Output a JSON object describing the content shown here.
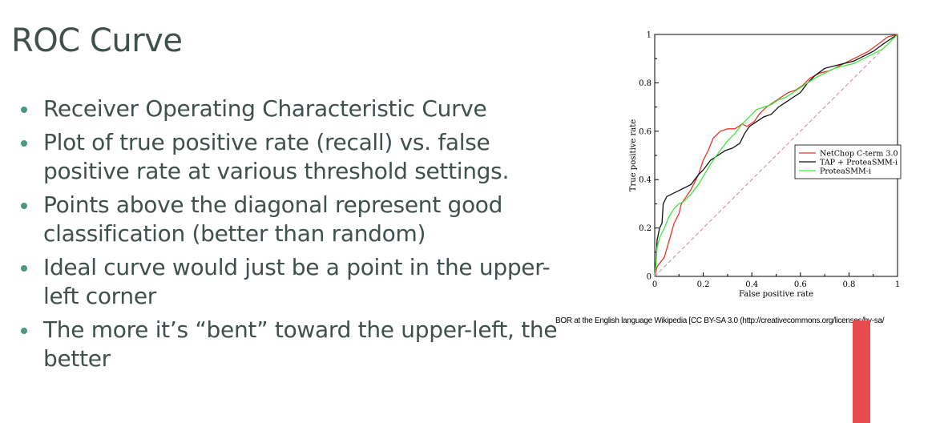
{
  "slide": {
    "title": "ROC Curve",
    "bullets": [
      "Receiver Operating Characteristic Curve",
      "Plot of true positive rate (recall) vs. false positive rate at various threshold settings.",
      "Points above the diagonal represent good classification (better than random)",
      "Ideal curve would just be a point in the upper-left corner",
      "The more it’s “bent” toward the upper-left, the better"
    ],
    "caption": "BOR at the English language Wikipedia [CC BY-SA 3.0 (http://creativecommons.org/licenses/by-sa/",
    "colors": {
      "text": "#3f5148",
      "bullet": "#4a9a7a",
      "accent_bar": "#e84b4b"
    }
  },
  "chart_data": {
    "type": "line",
    "title": "",
    "xlabel": "False positive rate",
    "ylabel": "True positive rate",
    "xlim": [
      0,
      1
    ],
    "ylim": [
      0,
      1
    ],
    "xticks": [
      "0",
      "0.2",
      "0.4",
      "0.6",
      "0.8",
      "1"
    ],
    "yticks": [
      "0",
      "0.2",
      "0.4",
      "0.6",
      "0.8",
      "1"
    ],
    "legend_position": "right",
    "series": [
      {
        "name": "NetChop C-term 3.0",
        "color": "#e8342a",
        "points": [
          [
            0,
            0
          ],
          [
            0.01,
            0.04
          ],
          [
            0.04,
            0.08
          ],
          [
            0.06,
            0.15
          ],
          [
            0.08,
            0.22
          ],
          [
            0.1,
            0.26
          ],
          [
            0.11,
            0.3
          ],
          [
            0.13,
            0.33
          ],
          [
            0.15,
            0.36
          ],
          [
            0.18,
            0.42
          ],
          [
            0.2,
            0.48
          ],
          [
            0.22,
            0.52
          ],
          [
            0.24,
            0.57
          ],
          [
            0.27,
            0.6
          ],
          [
            0.3,
            0.61
          ],
          [
            0.33,
            0.61
          ],
          [
            0.36,
            0.63
          ],
          [
            0.38,
            0.62
          ],
          [
            0.41,
            0.64
          ],
          [
            0.43,
            0.67
          ],
          [
            0.46,
            0.7
          ],
          [
            0.49,
            0.72
          ],
          [
            0.52,
            0.74
          ],
          [
            0.55,
            0.76
          ],
          [
            0.58,
            0.77
          ],
          [
            0.61,
            0.79
          ],
          [
            0.64,
            0.82
          ],
          [
            0.68,
            0.84
          ],
          [
            0.72,
            0.85
          ],
          [
            0.76,
            0.87
          ],
          [
            0.8,
            0.89
          ],
          [
            0.84,
            0.91
          ],
          [
            0.88,
            0.93
          ],
          [
            0.92,
            0.96
          ],
          [
            0.96,
            0.99
          ],
          [
            1,
            1
          ]
        ]
      },
      {
        "name": "TAP + ProteaSMM-i",
        "color": "#111111",
        "points": [
          [
            0,
            0
          ],
          [
            0.005,
            0.06
          ],
          [
            0.01,
            0.15
          ],
          [
            0.02,
            0.2
          ],
          [
            0.03,
            0.22
          ],
          [
            0.035,
            0.3
          ],
          [
            0.05,
            0.33
          ],
          [
            0.07,
            0.34
          ],
          [
            0.09,
            0.35
          ],
          [
            0.11,
            0.36
          ],
          [
            0.13,
            0.37
          ],
          [
            0.15,
            0.38
          ],
          [
            0.18,
            0.42
          ],
          [
            0.2,
            0.44
          ],
          [
            0.23,
            0.48
          ],
          [
            0.26,
            0.5
          ],
          [
            0.29,
            0.52
          ],
          [
            0.32,
            0.53
          ],
          [
            0.35,
            0.55
          ],
          [
            0.37,
            0.59
          ],
          [
            0.39,
            0.62
          ],
          [
            0.42,
            0.64
          ],
          [
            0.45,
            0.66
          ],
          [
            0.48,
            0.67
          ],
          [
            0.51,
            0.7
          ],
          [
            0.54,
            0.72
          ],
          [
            0.57,
            0.74
          ],
          [
            0.6,
            0.76
          ],
          [
            0.63,
            0.8
          ],
          [
            0.66,
            0.83
          ],
          [
            0.7,
            0.86
          ],
          [
            0.74,
            0.87
          ],
          [
            0.78,
            0.88
          ],
          [
            0.82,
            0.89
          ],
          [
            0.86,
            0.91
          ],
          [
            0.9,
            0.93
          ],
          [
            0.94,
            0.96
          ],
          [
            0.97,
            0.98
          ],
          [
            1,
            1
          ]
        ]
      },
      {
        "name": "ProteaSMM-i",
        "color": "#3ee63e",
        "points": [
          [
            0,
            0
          ],
          [
            0.005,
            0.05
          ],
          [
            0.01,
            0.12
          ],
          [
            0.02,
            0.16
          ],
          [
            0.04,
            0.2
          ],
          [
            0.06,
            0.25
          ],
          [
            0.08,
            0.28
          ],
          [
            0.1,
            0.3
          ],
          [
            0.12,
            0.31
          ],
          [
            0.15,
            0.34
          ],
          [
            0.18,
            0.38
          ],
          [
            0.21,
            0.43
          ],
          [
            0.24,
            0.48
          ],
          [
            0.27,
            0.52
          ],
          [
            0.3,
            0.56
          ],
          [
            0.33,
            0.59
          ],
          [
            0.36,
            0.63
          ],
          [
            0.39,
            0.66
          ],
          [
            0.42,
            0.69
          ],
          [
            0.45,
            0.7
          ],
          [
            0.48,
            0.71
          ],
          [
            0.51,
            0.73
          ],
          [
            0.54,
            0.74
          ],
          [
            0.57,
            0.76
          ],
          [
            0.6,
            0.78
          ],
          [
            0.63,
            0.8
          ],
          [
            0.66,
            0.82
          ],
          [
            0.7,
            0.84
          ],
          [
            0.74,
            0.86
          ],
          [
            0.78,
            0.87
          ],
          [
            0.82,
            0.88
          ],
          [
            0.86,
            0.9
          ],
          [
            0.9,
            0.92
          ],
          [
            0.94,
            0.94
          ],
          [
            0.97,
            0.97
          ],
          [
            1,
            1
          ]
        ]
      }
    ],
    "diagonal": {
      "color": "#c48a96",
      "dashed": true
    }
  }
}
